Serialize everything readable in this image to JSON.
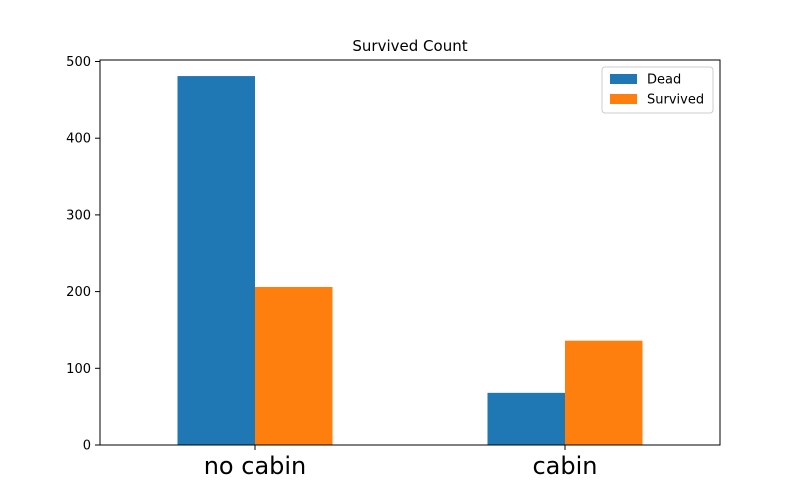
{
  "chart_data": {
    "type": "bar",
    "title": "Survived Count",
    "xlabel": "",
    "ylabel": "",
    "categories": [
      "no cabin",
      "cabin"
    ],
    "series": [
      {
        "name": "Dead",
        "values": [
          481,
          68
        ],
        "color": "#1f77b4"
      },
      {
        "name": "Survived",
        "values": [
          206,
          136
        ],
        "color": "#ff7f0e"
      }
    ],
    "ylim": [
      0,
      500
    ],
    "yticks": [
      0,
      100,
      200,
      300,
      400,
      500
    ],
    "grid": false,
    "legend_position": "top-right"
  }
}
